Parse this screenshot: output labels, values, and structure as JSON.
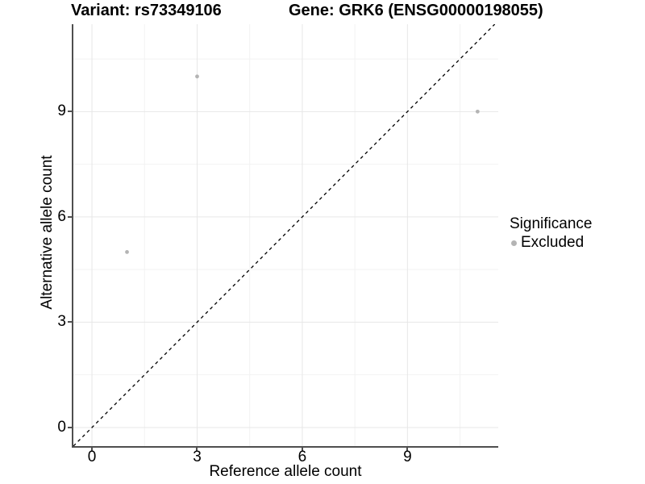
{
  "header": {
    "variant_title": "Variant: rs73349106",
    "gene_title": "Gene: GRK6 (ENSG00000198055)"
  },
  "legend": {
    "title": "Significance",
    "items": [
      {
        "label": "Excluded",
        "color": "#b4b4b4"
      }
    ]
  },
  "chart_data": {
    "type": "scatter",
    "title_variant": "Variant: rs73349106",
    "title_gene": "Gene: GRK6 (ENSG00000198055)",
    "xlabel": "Reference allele count",
    "ylabel": "Alternative allele count",
    "xlim": [
      -0.53,
      11.59
    ],
    "ylim": [
      -0.53,
      11.49
    ],
    "xticks": [
      0,
      3,
      6,
      9
    ],
    "yticks": [
      0,
      3,
      6,
      9
    ],
    "x_minor_gridlines": [
      1.5,
      4.5,
      7.5,
      10.5
    ],
    "y_minor_gridlines": [
      1.5,
      4.5,
      7.5,
      10.5
    ],
    "grid": "major+minor",
    "legend_position": "right",
    "series": [
      {
        "name": "Excluded",
        "marker": "circle",
        "color": "#b4b4b4",
        "points": [
          {
            "x": 1,
            "y": 5
          },
          {
            "x": 3,
            "y": 10
          },
          {
            "x": 11,
            "y": 9
          }
        ]
      }
    ],
    "identity_line": {
      "type": "identity",
      "style": "dashed",
      "color": "#000000"
    },
    "colors": {
      "axis_line": "#4f4f4f",
      "major_grid": "#e7e7e7",
      "minor_grid": "#f2f2f2",
      "background": "#ffffff"
    }
  }
}
